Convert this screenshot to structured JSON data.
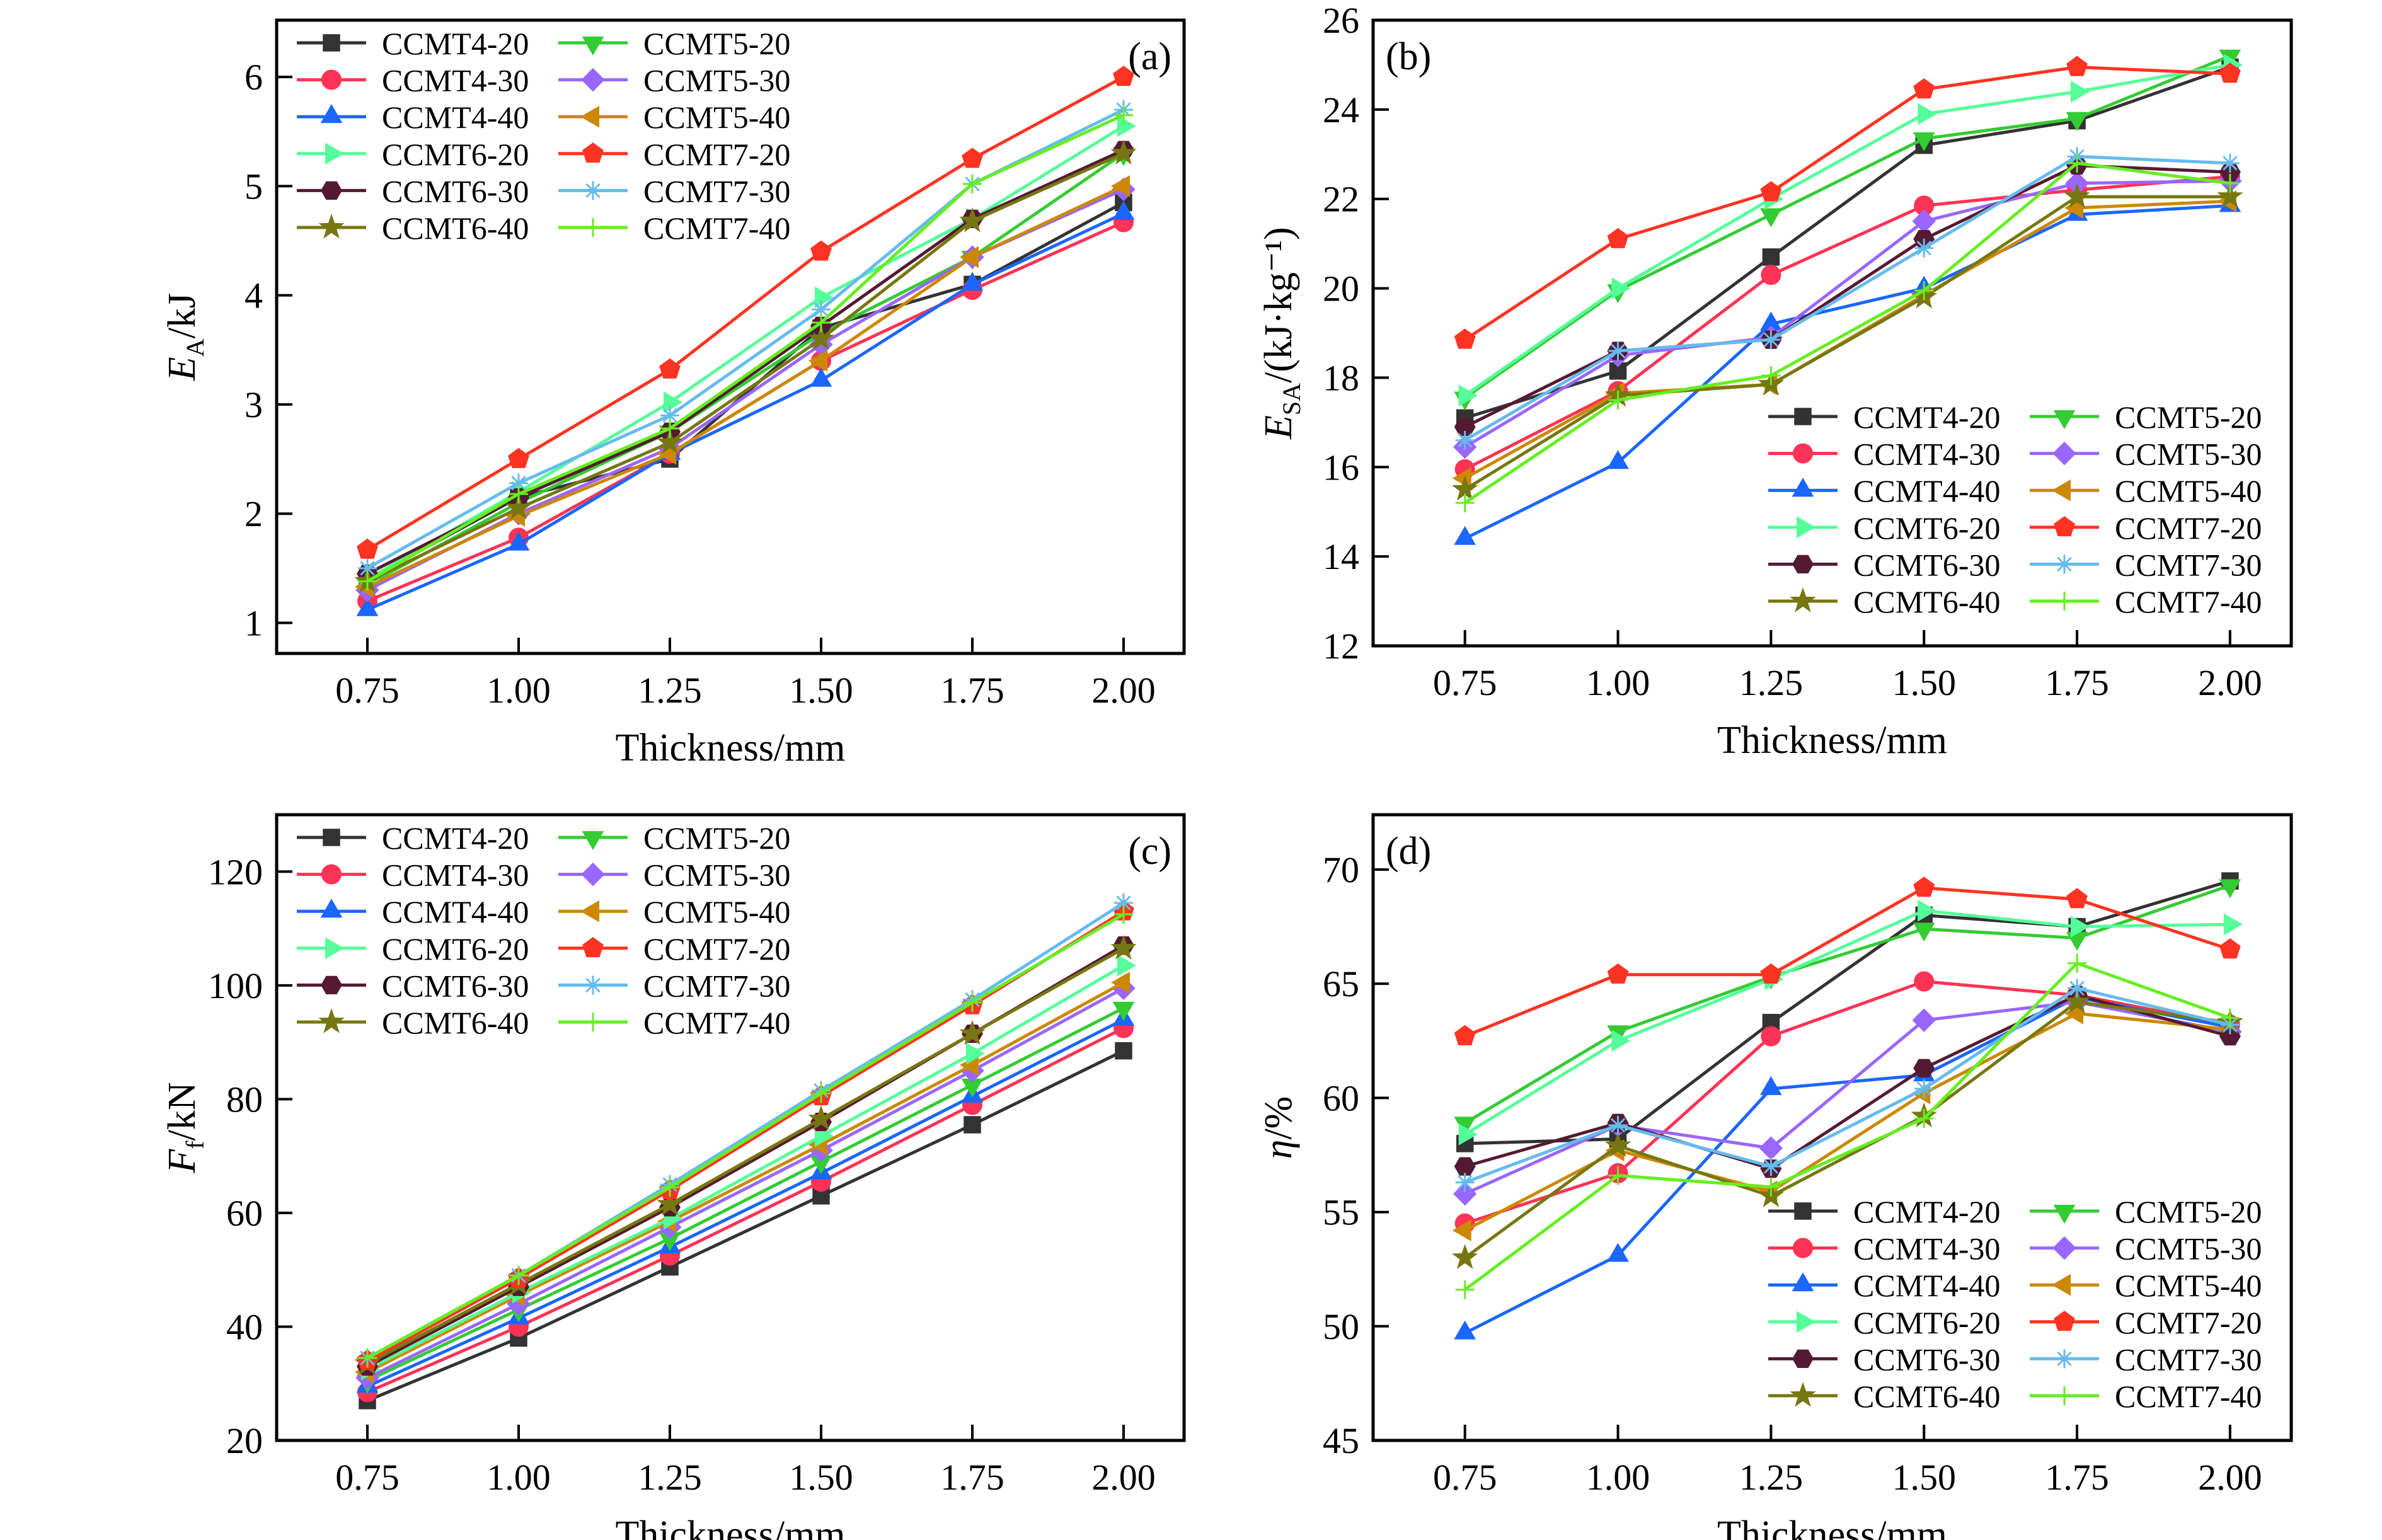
{
  "x_values": [
    0.75,
    1.0,
    1.25,
    1.5,
    1.75,
    2.0
  ],
  "x_tick_labels": [
    "0.75",
    "1.00",
    "1.25",
    "1.50",
    "1.75",
    "2.00"
  ],
  "series_styles": [
    {
      "name": "CCMT4-20",
      "color": "#333333",
      "marker": "square"
    },
    {
      "name": "CCMT4-30",
      "color": "#ff3355",
      "marker": "circle"
    },
    {
      "name": "CCMT4-40",
      "color": "#1a66ff",
      "marker": "triangle-up"
    },
    {
      "name": "CCMT5-20",
      "color": "#33cc33",
      "marker": "triangle-down"
    },
    {
      "name": "CCMT5-30",
      "color": "#9966ff",
      "marker": "diamond"
    },
    {
      "name": "CCMT5-40",
      "color": "#cc8800",
      "marker": "triangle-left"
    },
    {
      "name": "CCMT6-20",
      "color": "#55ff99",
      "marker": "triangle-right"
    },
    {
      "name": "CCMT6-30",
      "color": "#551a33",
      "marker": "hexagon"
    },
    {
      "name": "CCMT6-40",
      "color": "#777711",
      "marker": "star"
    },
    {
      "name": "CCMT7-20",
      "color": "#ff3322",
      "marker": "pentagon"
    },
    {
      "name": "CCMT7-30",
      "color": "#66bbee",
      "marker": "asterisk"
    },
    {
      "name": "CCMT7-40",
      "color": "#66ee22",
      "marker": "plus"
    }
  ],
  "chart_data": [
    {
      "type": "line",
      "panel_label": "(a)",
      "xlabel": "Thickness/mm",
      "ylabel_main": "E",
      "ylabel_sub": "A",
      "ylabel_rest": "/kJ",
      "xlim": [
        0.6,
        2.1
      ],
      "ylim": [
        0.72,
        6.52
      ],
      "yticks": [
        1,
        2,
        3,
        4,
        5,
        6
      ],
      "grid": false,
      "legend": "top-left",
      "series": [
        {
          "name": "CCMT4-20",
          "values": [
            1.4,
            2.15,
            2.5,
            3.7,
            4.1,
            4.85
          ]
        },
        {
          "name": "CCMT4-30",
          "values": [
            1.2,
            1.78,
            2.55,
            3.4,
            4.05,
            4.67
          ]
        },
        {
          "name": "CCMT4-40",
          "values": [
            1.12,
            1.72,
            2.55,
            3.22,
            4.1,
            4.75
          ]
        },
        {
          "name": "CCMT5-20",
          "values": [
            1.35,
            2.1,
            2.75,
            3.65,
            4.35,
            5.3
          ]
        },
        {
          "name": "CCMT5-30",
          "values": [
            1.3,
            2.0,
            2.6,
            3.55,
            4.35,
            4.97
          ]
        },
        {
          "name": "CCMT5-40",
          "values": [
            1.33,
            1.98,
            2.55,
            3.4,
            4.35,
            5.0
          ]
        },
        {
          "name": "CCMT6-20",
          "values": [
            1.4,
            2.2,
            3.02,
            3.98,
            4.7,
            5.55
          ]
        },
        {
          "name": "CCMT6-30",
          "values": [
            1.45,
            2.15,
            2.75,
            3.72,
            4.7,
            5.33
          ]
        },
        {
          "name": "CCMT6-40",
          "values": [
            1.38,
            2.05,
            2.65,
            3.6,
            4.68,
            5.3
          ]
        },
        {
          "name": "CCMT7-20",
          "values": [
            1.67,
            2.5,
            3.32,
            4.4,
            5.25,
            6.0
          ]
        },
        {
          "name": "CCMT7-30",
          "values": [
            1.5,
            2.28,
            2.9,
            3.87,
            5.02,
            5.7
          ]
        },
        {
          "name": "CCMT7-40",
          "values": [
            1.38,
            2.18,
            2.78,
            3.75,
            5.02,
            5.65
          ]
        }
      ]
    },
    {
      "type": "line",
      "panel_label": "(b)",
      "xlabel": "Thickness/mm",
      "ylabel_main": "E",
      "ylabel_sub": "SA",
      "ylabel_rest": "/(kJ·kg⁻¹)",
      "xlim": [
        0.6,
        2.1
      ],
      "ylim": [
        12,
        26
      ],
      "yticks": [
        12,
        14,
        16,
        18,
        20,
        22,
        24,
        26
      ],
      "grid": false,
      "legend": "bottom-right",
      "series": [
        {
          "name": "CCMT4-20",
          "values": [
            17.1,
            18.15,
            20.7,
            23.2,
            23.75,
            24.95
          ]
        },
        {
          "name": "CCMT4-30",
          "values": [
            15.95,
            17.7,
            20.3,
            21.85,
            22.2,
            22.5
          ]
        },
        {
          "name": "CCMT4-40",
          "values": [
            14.4,
            16.1,
            19.2,
            20.0,
            21.65,
            21.85
          ]
        },
        {
          "name": "CCMT5-20",
          "values": [
            17.55,
            19.95,
            21.65,
            23.35,
            23.8,
            25.2
          ]
        },
        {
          "name": "CCMT5-30",
          "values": [
            16.45,
            18.5,
            18.9,
            21.5,
            22.35,
            22.4
          ]
        },
        {
          "name": "CCMT5-40",
          "values": [
            15.75,
            17.65,
            17.85,
            19.85,
            21.8,
            21.95
          ]
        },
        {
          "name": "CCMT6-20",
          "values": [
            17.6,
            20.0,
            22.0,
            23.9,
            24.4,
            25.0
          ]
        },
        {
          "name": "CCMT6-30",
          "values": [
            16.9,
            18.6,
            18.85,
            21.1,
            22.75,
            22.6
          ]
        },
        {
          "name": "CCMT6-40",
          "values": [
            15.5,
            17.6,
            17.85,
            19.8,
            22.05,
            22.05
          ]
        },
        {
          "name": "CCMT7-20",
          "values": [
            18.85,
            21.1,
            22.15,
            24.45,
            24.95,
            24.8
          ]
        },
        {
          "name": "CCMT7-30",
          "values": [
            16.6,
            18.6,
            18.85,
            20.9,
            22.95,
            22.8
          ]
        },
        {
          "name": "CCMT7-40",
          "values": [
            15.2,
            17.5,
            18.05,
            19.95,
            22.8,
            22.35
          ]
        }
      ]
    },
    {
      "type": "line",
      "panel_label": "(c)",
      "xlabel": "Thickness/mm",
      "ylabel_main": "F",
      "ylabel_sub": "f",
      "ylabel_rest": "/kN",
      "xlim": [
        0.6,
        2.1
      ],
      "ylim": [
        20,
        130
      ],
      "yticks": [
        20,
        40,
        60,
        80,
        100,
        120
      ],
      "grid": false,
      "legend": "top-left",
      "series": [
        {
          "name": "CCMT4-20",
          "values": [
            27.0,
            38.0,
            50.5,
            63.0,
            75.5,
            88.5
          ]
        },
        {
          "name": "CCMT4-30",
          "values": [
            28.5,
            40.0,
            52.5,
            65.5,
            79.0,
            92.5
          ]
        },
        {
          "name": "CCMT4-40",
          "values": [
            29.5,
            41.5,
            54.0,
            67.0,
            80.5,
            94.0
          ]
        },
        {
          "name": "CCMT5-20",
          "values": [
            30.5,
            43.0,
            55.5,
            69.0,
            82.5,
            96.0
          ]
        },
        {
          "name": "CCMT5-30",
          "values": [
            31.0,
            44.0,
            57.5,
            71.0,
            85.0,
            99.5
          ]
        },
        {
          "name": "CCMT5-40",
          "values": [
            32.0,
            45.5,
            58.5,
            72.0,
            86.0,
            100.5
          ]
        },
        {
          "name": "CCMT6-20",
          "values": [
            32.5,
            46.0,
            59.0,
            73.5,
            88.0,
            103.5
          ]
        },
        {
          "name": "CCMT6-30",
          "values": [
            33.0,
            47.0,
            61.0,
            76.0,
            91.5,
            107.0
          ]
        },
        {
          "name": "CCMT6-40",
          "values": [
            33.5,
            47.5,
            61.5,
            76.5,
            91.5,
            106.5
          ]
        },
        {
          "name": "CCMT7-20",
          "values": [
            34.0,
            48.5,
            64.0,
            80.5,
            96.5,
            113.0
          ]
        },
        {
          "name": "CCMT7-30",
          "values": [
            34.5,
            49.0,
            65.0,
            81.5,
            97.5,
            114.5
          ]
        },
        {
          "name": "CCMT7-40",
          "values": [
            34.5,
            49.0,
            64.5,
            81.0,
            97.0,
            112.5
          ]
        }
      ]
    },
    {
      "type": "line",
      "panel_label": "(d)",
      "xlabel": "Thickness/mm",
      "ylabel_main": "η",
      "ylabel_sub": "",
      "ylabel_rest": "/%",
      "xlim": [
        0.6,
        2.1
      ],
      "ylim": [
        45,
        72.4
      ],
      "yticks": [
        45,
        50,
        55,
        60,
        65,
        70
      ],
      "grid": false,
      "legend": "bottom-right",
      "series": [
        {
          "name": "CCMT4-20",
          "values": [
            58.0,
            58.2,
            63.3,
            68.0,
            67.5,
            69.5
          ]
        },
        {
          "name": "CCMT4-30",
          "values": [
            54.5,
            56.7,
            62.7,
            65.1,
            64.5,
            63.2
          ]
        },
        {
          "name": "CCMT4-40",
          "values": [
            49.7,
            53.1,
            60.4,
            61.0,
            64.4,
            63.1
          ]
        },
        {
          "name": "CCMT5-20",
          "values": [
            58.9,
            62.9,
            65.3,
            67.4,
            67.0,
            69.3
          ]
        },
        {
          "name": "CCMT5-30",
          "values": [
            55.8,
            58.8,
            57.8,
            63.4,
            64.2,
            62.9
          ]
        },
        {
          "name": "CCMT5-40",
          "values": [
            54.2,
            57.7,
            55.9,
            60.2,
            63.7,
            63.0
          ]
        },
        {
          "name": "CCMT6-20",
          "values": [
            58.4,
            62.5,
            65.2,
            68.2,
            67.5,
            67.6
          ]
        },
        {
          "name": "CCMT6-30",
          "values": [
            57.0,
            58.9,
            56.9,
            61.3,
            64.5,
            62.7
          ]
        },
        {
          "name": "CCMT6-40",
          "values": [
            53.0,
            57.9,
            55.7,
            59.2,
            64.2,
            63.3
          ]
        },
        {
          "name": "CCMT7-20",
          "values": [
            62.7,
            65.4,
            65.4,
            69.2,
            68.7,
            66.5
          ]
        },
        {
          "name": "CCMT7-30",
          "values": [
            56.3,
            58.8,
            57.0,
            60.4,
            64.8,
            63.2
          ]
        },
        {
          "name": "CCMT7-40",
          "values": [
            51.6,
            56.6,
            56.1,
            59.1,
            65.9,
            63.5
          ]
        }
      ]
    }
  ]
}
